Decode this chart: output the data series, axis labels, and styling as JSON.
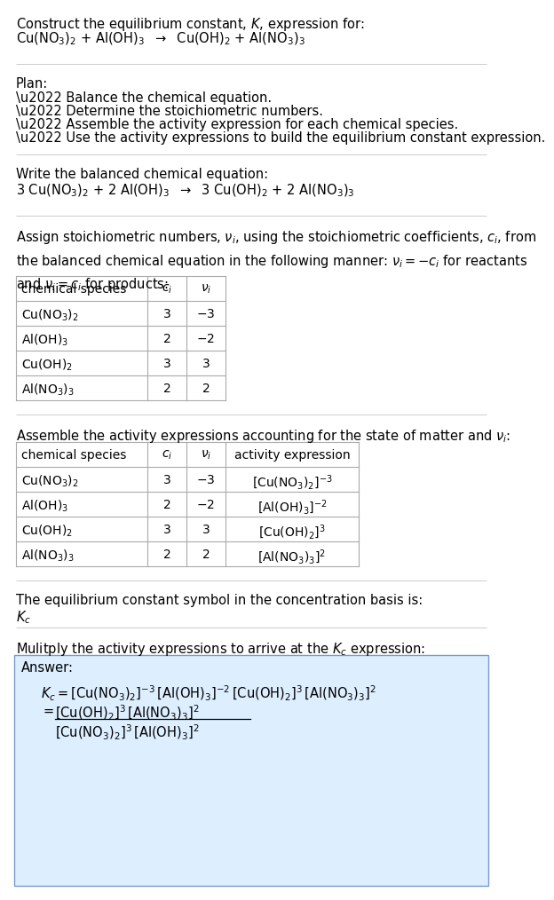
{
  "bg_color": "#ffffff",
  "answer_bg": "#ddeeff",
  "table_border": "#aaaaaa",
  "sep_color": "#cccccc",
  "text_color": "#000000",
  "fs": 10.5,
  "fs_table": 10.0,
  "fig_w": 546,
  "fig_h": 995,
  "section1": {
    "line1": "Construct the equilibrium constant, $K$, expression for:",
    "line2": "Cu(NO$_3$)$_2$ + Al(OH)$_3$  $\\rightarrow$  Cu(OH)$_2$ + Al(NO$_3$)$_3$"
  },
  "plan_header": "Plan:",
  "plan_items": [
    "\\u2022 Balance the chemical equation.",
    "\\u2022 Determine the stoichiometric numbers.",
    "\\u2022 Assemble the activity expression for each chemical species.",
    "\\u2022 Use the activity expressions to build the equilibrium constant expression."
  ],
  "balanced_header": "Write the balanced chemical equation:",
  "balanced_eq": "3 Cu(NO$_3$)$_2$ + 2 Al(OH)$_3$  $\\rightarrow$  3 Cu(OH)$_2$ + 2 Al(NO$_3$)$_3$",
  "stoich_intro": "Assign stoichiometric numbers, $\\nu_i$, using the stoichiometric coefficients, $c_i$, from\nthe balanced chemical equation in the following manner: $\\nu_i = -c_i$ for reactants\nand $\\nu_i = c_i$ for products:",
  "table1_headers": [
    "chemical species",
    "$c_i$",
    "$\\nu_i$"
  ],
  "table1_rows": [
    [
      "Cu(NO$_3$)$_2$",
      "3",
      "$-3$"
    ],
    [
      "Al(OH)$_3$",
      "2",
      "$-2$"
    ],
    [
      "Cu(OH)$_2$",
      "3",
      "3"
    ],
    [
      "Al(NO$_3$)$_3$",
      "2",
      "2"
    ]
  ],
  "activity_intro": "Assemble the activity expressions accounting for the state of matter and $\\nu_i$:",
  "table2_headers": [
    "chemical species",
    "$c_i$",
    "$\\nu_i$",
    "activity expression"
  ],
  "table2_rows": [
    [
      "Cu(NO$_3$)$_2$",
      "3",
      "$-3$",
      "[Cu(NO$_3$)$_2$]$^{-3}$"
    ],
    [
      "Al(OH)$_3$",
      "2",
      "$-2$",
      "[Al(OH)$_3$]$^{-2}$"
    ],
    [
      "Cu(OH)$_2$",
      "3",
      "3",
      "[Cu(OH)$_2$]$^3$"
    ],
    [
      "Al(NO$_3$)$_3$",
      "2",
      "2",
      "[Al(NO$_3$)$_3$]$^2$"
    ]
  ],
  "kc_header": "The equilibrium constant symbol in the concentration basis is:",
  "kc_symbol": "$K_c$",
  "multiply_header": "Mulitply the activity expressions to arrive at the $K_c$ expression:",
  "answer_label": "Answer:",
  "kc_eq_line1": "$K_c = [\\mathrm{Cu(NO_3)_2}]^{-3}\\,[\\mathrm{Al(OH)_3}]^{-2}\\,[\\mathrm{Cu(OH)_2}]^3\\,[\\mathrm{Al(NO_3)_3}]^2$",
  "kc_eq_line2_lhs": "$=$",
  "kc_eq_line2_num": "$[\\mathrm{Cu(OH)_2}]^3\\,[\\mathrm{Al(NO_3)_3}]^2$",
  "kc_eq_line2_den": "$[\\mathrm{Cu(NO_3)_2}]^3\\,[\\mathrm{Al(OH)_3}]^2$"
}
